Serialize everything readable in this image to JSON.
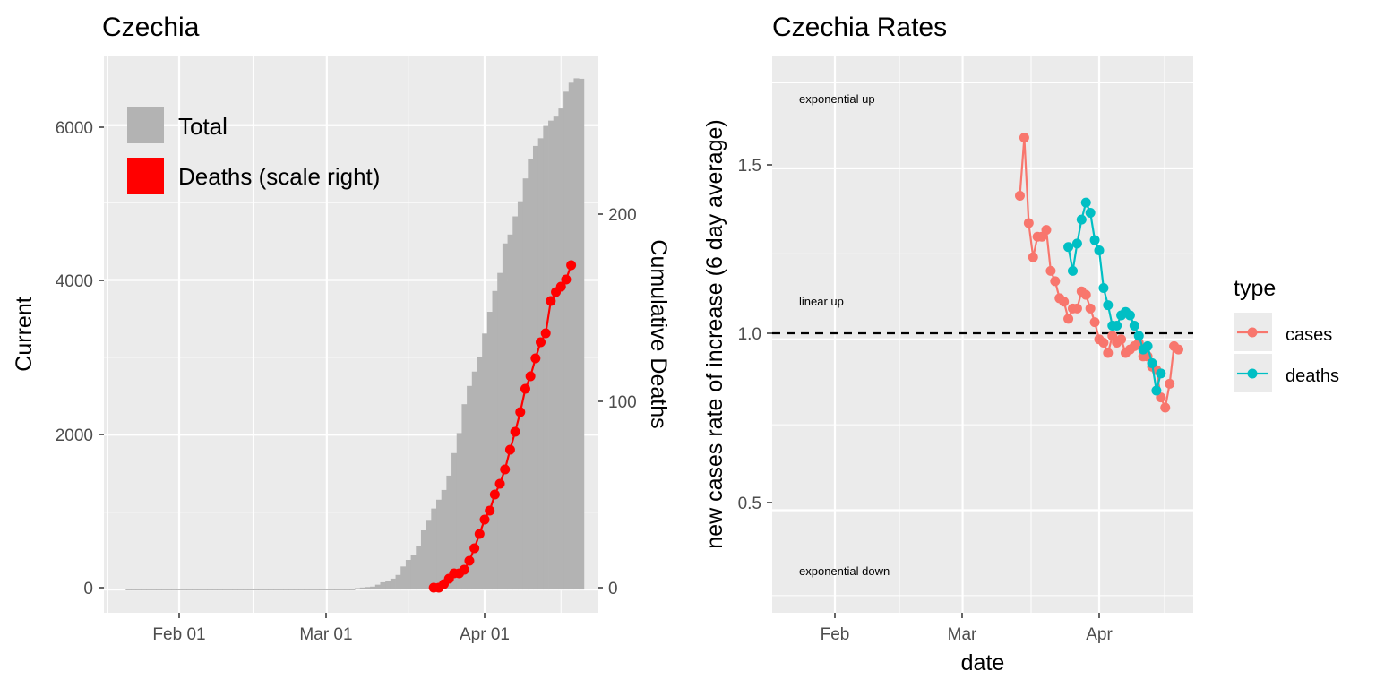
{
  "chart_data": [
    {
      "type": "bar",
      "title": "Czechia",
      "xlabel": "",
      "ylabel": "Current",
      "ylabel_right": "Cumulative Deaths",
      "x_ticks": [
        "Feb 01",
        "Mar 01",
        "Apr 01"
      ],
      "y_ticks": [
        "0",
        "2000",
        "4000",
        "6000"
      ],
      "y2_ticks": [
        "0",
        "100",
        "200"
      ],
      "ylim": [
        -300,
        6900
      ],
      "y2lim": [
        -13,
        298
      ],
      "legend_placement": "top-left",
      "legend": [
        {
          "name": "Total",
          "color": "#b3b3b3"
        },
        {
          "name": "Deaths (scale right)",
          "color": "#ff0000"
        }
      ],
      "series": [
        {
          "name": "Total",
          "color": "#b3b3b3",
          "start_date": "Jan 22",
          "values": [
            0,
            0,
            0,
            0,
            0,
            0,
            0,
            0,
            0,
            0,
            0,
            0,
            0,
            0,
            0,
            0,
            0,
            0,
            0,
            0,
            0,
            0,
            0,
            0,
            0,
            0,
            0,
            0,
            0,
            0,
            0,
            0,
            0,
            0,
            0,
            0,
            0,
            0,
            0,
            0,
            3,
            3,
            5,
            5,
            8,
            19,
            26,
            32,
            38,
            63,
            94,
            116,
            141,
            189,
            298,
            383,
            450,
            560,
            765,
            889,
            1047,
            1161,
            1287,
            1472,
            1763,
            2022,
            2395,
            2631,
            2817,
            3001,
            3308,
            3589,
            3858,
            4091,
            4472,
            4587,
            4822,
            5017,
            5312,
            5569,
            5732,
            5831,
            5991,
            6059,
            6111,
            6216,
            6433,
            6549,
            6606,
            6600
          ]
        },
        {
          "name": "Deaths (scale right)",
          "color": "#ff0000",
          "start_date": "Mar 22",
          "values": [
            1,
            1,
            3,
            6,
            9,
            9,
            11,
            16,
            23,
            31,
            39,
            44,
            53,
            59,
            67,
            78,
            88,
            99,
            112,
            119,
            129,
            138,
            143,
            161,
            166,
            169,
            173,
            181
          ]
        }
      ]
    },
    {
      "type": "line",
      "title": "Czechia Rates",
      "xlabel": "date",
      "ylabel": "new cases rate of increase (6 day average)",
      "x_ticks": [
        "Feb",
        "Mar",
        "Apr"
      ],
      "y_ticks": [
        "0.5",
        "1.0",
        "1.5"
      ],
      "ylim": [
        0.2,
        1.83
      ],
      "reference_line": 1.0,
      "annotations": [
        "exponential up",
        "linear up",
        "exponential down"
      ],
      "legend_title": "type",
      "legend_placement": "right",
      "series": [
        {
          "name": "cases",
          "color": "#f8766d",
          "start_date": "Mar 14",
          "values": [
            1.42,
            1.59,
            1.34,
            1.24,
            1.3,
            1.3,
            1.32,
            1.2,
            1.17,
            1.12,
            1.11,
            1.06,
            1.09,
            1.09,
            1.14,
            1.13,
            1.09,
            1.05,
            1.0,
            0.99,
            0.96,
            1.01,
            0.99,
            1.0,
            0.96,
            0.97,
            0.98,
            0.99,
            0.95,
            0.95,
            0.92,
            0.91,
            0.83,
            0.8,
            0.87,
            0.98,
            0.97
          ]
        },
        {
          "name": "deaths",
          "color": "#00bfc4",
          "start_date": "Mar 25",
          "values": [
            1.27,
            1.2,
            1.28,
            1.35,
            1.4,
            1.37,
            1.29,
            1.26,
            1.15,
            1.1,
            1.04,
            1.04,
            1.07,
            1.08,
            1.07,
            1.04,
            1.01,
            0.97,
            0.98,
            0.93,
            0.85,
            0.9
          ]
        }
      ]
    }
  ]
}
